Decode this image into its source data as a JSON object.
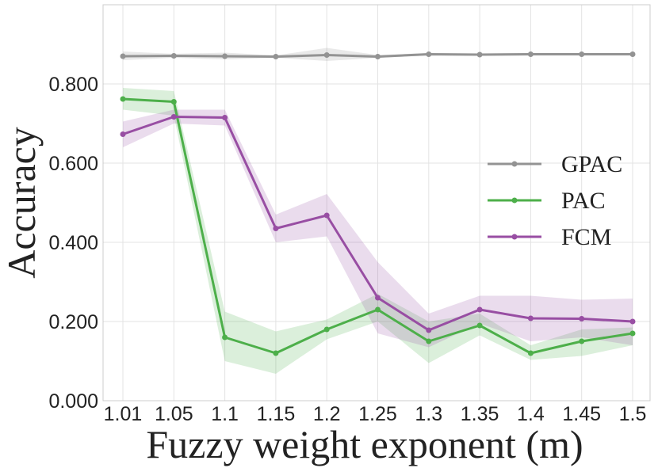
{
  "chart_data": {
    "type": "line",
    "title": "",
    "xlabel": "Fuzzy weight exponent (m)",
    "ylabel": "Accuracy",
    "x": [
      "1.01",
      "1.05",
      "1.1",
      "1.15",
      "1.2",
      "1.25",
      "1.3",
      "1.35",
      "1.4",
      "1.45",
      "1.5"
    ],
    "ylim": [
      0.0,
      1.0
    ],
    "yticks": [
      "0.000",
      "0.200",
      "0.400",
      "0.600",
      "0.800"
    ],
    "ytick_values": [
      0.0,
      0.2,
      0.4,
      0.6,
      0.8
    ],
    "grid": true,
    "legend_position": "center-right",
    "series": [
      {
        "name": "GPAC",
        "color": "#939393",
        "values": [
          0.87,
          0.871,
          0.87,
          0.869,
          0.873,
          0.869,
          0.875,
          0.874,
          0.875,
          0.875,
          0.875
        ],
        "lower": [
          0.86,
          0.866,
          0.862,
          0.866,
          0.858,
          0.866,
          0.872,
          0.871,
          0.872,
          0.872,
          0.872
        ],
        "upper": [
          0.882,
          0.876,
          0.879,
          0.872,
          0.891,
          0.873,
          0.878,
          0.877,
          0.878,
          0.878,
          0.878
        ]
      },
      {
        "name": "PAC",
        "color": "#4daf4a",
        "values": [
          0.762,
          0.755,
          0.16,
          0.12,
          0.18,
          0.23,
          0.15,
          0.19,
          0.12,
          0.15,
          0.17
        ],
        "lower": [
          0.735,
          0.72,
          0.1,
          0.068,
          0.155,
          0.2,
          0.095,
          0.165,
          0.103,
          0.113,
          0.14
        ],
        "upper": [
          0.79,
          0.782,
          0.225,
          0.175,
          0.205,
          0.27,
          0.2,
          0.22,
          0.14,
          0.18,
          0.185
        ]
      },
      {
        "name": "FCM",
        "color": "#984ea3",
        "values": [
          0.673,
          0.717,
          0.715,
          0.435,
          0.468,
          0.26,
          0.178,
          0.23,
          0.208,
          0.207,
          0.2
        ],
        "lower": [
          0.64,
          0.7,
          0.695,
          0.4,
          0.415,
          0.17,
          0.135,
          0.195,
          0.15,
          0.16,
          0.14
        ],
        "upper": [
          0.705,
          0.735,
          0.735,
          0.47,
          0.522,
          0.35,
          0.22,
          0.265,
          0.265,
          0.255,
          0.258
        ]
      }
    ]
  }
}
